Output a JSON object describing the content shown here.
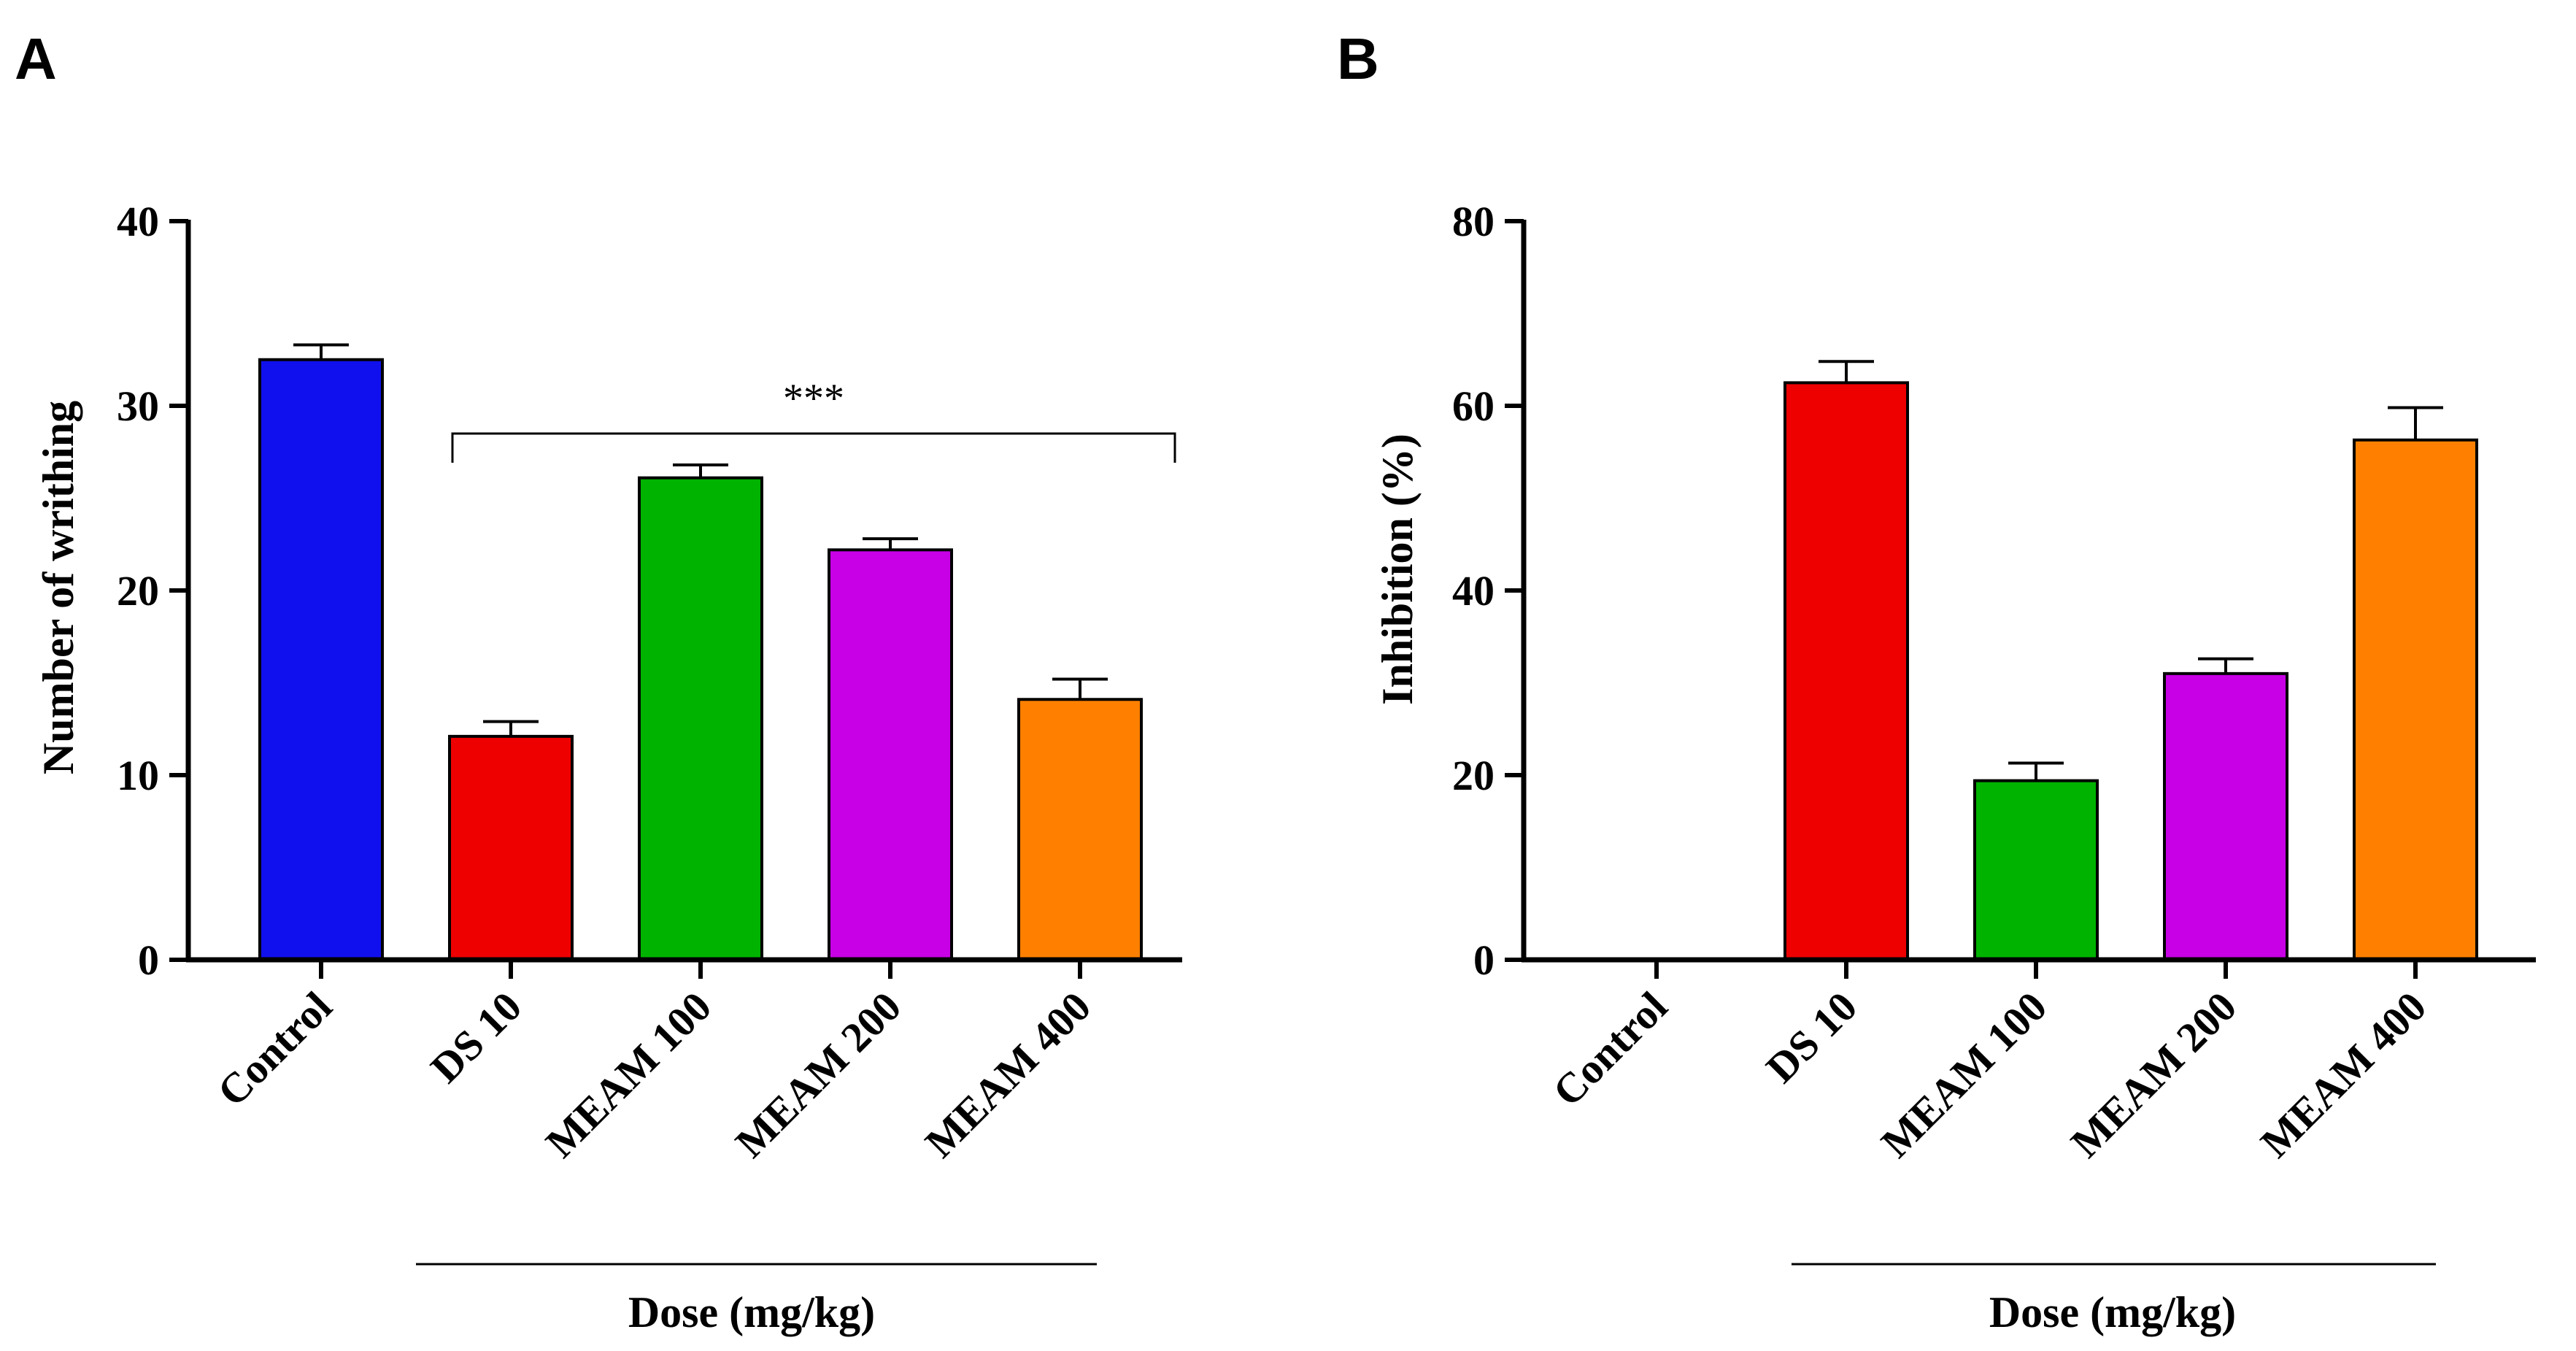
{
  "chart_data": [
    {
      "type": "bar",
      "panel_label": "A",
      "categories": [
        "Control",
        "DS 10",
        "MEAM 100",
        "MEAM 200",
        "MEAM 400"
      ],
      "values": [
        32.5,
        12.1,
        26.1,
        22.2,
        14.1
      ],
      "errors": [
        0.8,
        0.8,
        0.7,
        0.6,
        1.1
      ],
      "colors": [
        "#1010ee",
        "#ee0000",
        "#00b300",
        "#c800e6",
        "#ff8000"
      ],
      "ylabel": "Number of writhing",
      "xlabel": "Dose (mg/kg)",
      "ylim": [
        0,
        40
      ],
      "yticks": [
        "0",
        "10",
        "20",
        "30",
        "40"
      ],
      "significance": {
        "label": "***",
        "from": "DS 10",
        "to": "MEAM 400",
        "level": 28.5
      }
    },
    {
      "type": "bar",
      "panel_label": "B",
      "categories": [
        "Control",
        "DS 10",
        "MEAM 100",
        "MEAM 200",
        "MEAM 400"
      ],
      "values": [
        0,
        62.5,
        19.4,
        31.0,
        56.3
      ],
      "errors": [
        0,
        2.3,
        1.9,
        1.6,
        3.5
      ],
      "colors": [
        "#1010ee",
        "#ee0000",
        "#00b300",
        "#c800e6",
        "#ff8000"
      ],
      "ylabel": "Inhibition (%)",
      "xlabel": "Dose (mg/kg)",
      "ylim": [
        0,
        80
      ],
      "yticks": [
        "0",
        "20",
        "40",
        "60",
        "80"
      ]
    }
  ]
}
